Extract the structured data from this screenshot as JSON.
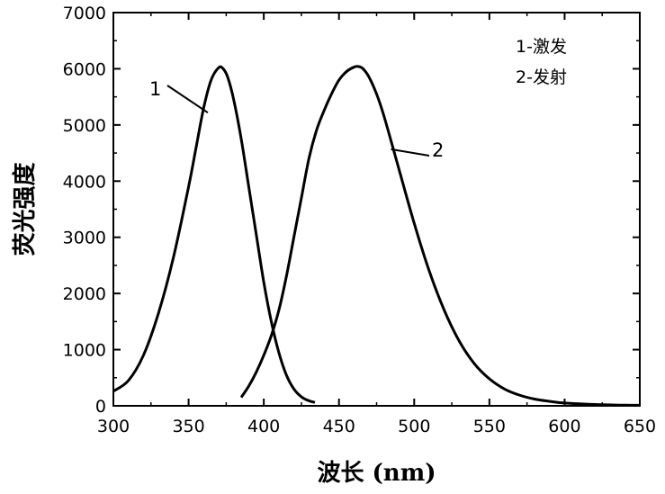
{
  "chart_data": {
    "type": "line",
    "xlabel": "波长 (nm)",
    "ylabel": "荧光强度",
    "xlim": [
      300,
      650
    ],
    "ylim": [
      0,
      7000
    ],
    "xticks": [
      300,
      350,
      400,
      450,
      500,
      550,
      600,
      650
    ],
    "yticks": [
      0,
      1000,
      2000,
      3000,
      4000,
      5000,
      6000,
      7000
    ],
    "grid": false,
    "legend": {
      "placement": "top-right",
      "lines": [
        "1-激发",
        "2-发射"
      ]
    },
    "series": [
      {
        "name": "1",
        "x": [
          300,
          310,
          320,
          330,
          340,
          350,
          355,
          360,
          365,
          370,
          373,
          376,
          380,
          385,
          390,
          395,
          400,
          405,
          410,
          415,
          420,
          425,
          430,
          434
        ],
        "y": [
          260,
          450,
          900,
          1650,
          2650,
          3900,
          4600,
          5300,
          5800,
          6020,
          6000,
          5850,
          5450,
          4750,
          3900,
          3050,
          2200,
          1500,
          950,
          550,
          300,
          160,
          90,
          60
        ]
      },
      {
        "name": "2",
        "x": [
          385,
          390,
          395,
          400,
          405,
          410,
          415,
          420,
          425,
          430,
          435,
          440,
          445,
          450,
          455,
          460,
          463,
          466,
          470,
          475,
          480,
          490,
          500,
          510,
          520,
          530,
          540,
          550,
          560,
          570,
          580,
          590,
          600,
          620,
          640,
          650
        ],
        "y": [
          150,
          350,
          600,
          900,
          1250,
          1700,
          2300,
          3000,
          3700,
          4400,
          4900,
          5250,
          5550,
          5800,
          5950,
          6030,
          6040,
          6000,
          5850,
          5550,
          5150,
          4200,
          3250,
          2400,
          1700,
          1150,
          750,
          480,
          300,
          190,
          120,
          80,
          50,
          25,
          12,
          10
        ]
      }
    ]
  }
}
